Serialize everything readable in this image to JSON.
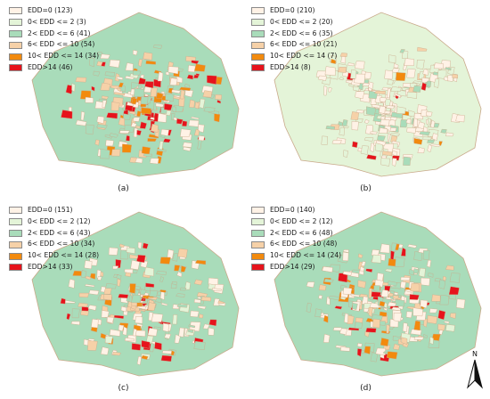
{
  "colors": {
    "class0": "#fff2e6",
    "class1": "#e4f4d8",
    "class2": "#a9dcba",
    "class3": "#f6d1a8",
    "class4": "#f28a0e",
    "class5": "#e6131c",
    "outline": "#c9a98a"
  },
  "panels": [
    {
      "caption": "(a)",
      "legend": [
        "EDD=0 (123)",
        "0< EDD <= 2 (3)",
        "2< EDD <= 6 (41)",
        "6< EDD <= 10 (54)",
        "10< EDD <= 14 (34)",
        "EDD>14 (46)"
      ]
    },
    {
      "caption": "(b)",
      "legend": [
        "EDD=0 (210)",
        "0< EDD <= 2 (20)",
        "2< EDD <= 6 (35)",
        "6< EDD <= 10 (21)",
        "10< EDD <= 14 (7)",
        "EDD>14 (8)"
      ]
    },
    {
      "caption": "(c)",
      "legend": [
        "EDD=0 (151)",
        "0< EDD <= 2 (12)",
        "2< EDD <= 6 (43)",
        "6< EDD <= 10 (34)",
        "10< EDD <= 14 (28)",
        "EDD>14 (33)"
      ]
    },
    {
      "caption": "(d)",
      "legend": [
        "EDD=0 (140)",
        "0< EDD <= 2 (12)",
        "2< EDD <= 6 (48)",
        "6< EDD <= 10 (48)",
        "10< EDD <= 14 (24)",
        "EDD>14 (29)"
      ]
    }
  ],
  "north_arrow": {
    "label": "N"
  }
}
